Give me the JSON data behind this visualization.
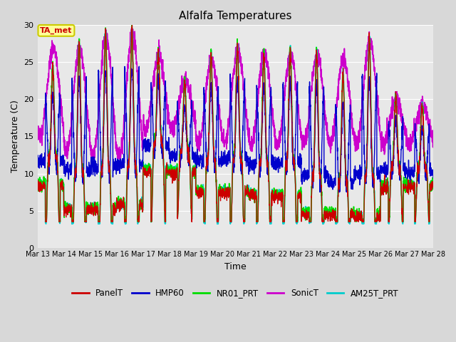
{
  "title": "Alfalfa Temperatures",
  "xlabel": "Time",
  "ylabel": "Temperature (C)",
  "ylim": [
    0,
    30
  ],
  "annotation_text": "TA_met",
  "annotation_color": "#cc0000",
  "annotation_bg": "#ffff99",
  "annotation_border": "#cccc00",
  "fig_bg": "#d8d8d8",
  "plot_bg": "#e8e8e8",
  "grid_color": "#ffffff",
  "series": {
    "PanelT": {
      "color": "#cc0000",
      "lw": 0.9,
      "zorder": 5
    },
    "HMP60": {
      "color": "#0000cc",
      "lw": 1.0,
      "zorder": 4
    },
    "NR01_PRT": {
      "color": "#00dd00",
      "lw": 1.2,
      "zorder": 3
    },
    "SonicT": {
      "color": "#cc00cc",
      "lw": 1.2,
      "zorder": 2
    },
    "AM25T_PRT": {
      "color": "#00cccc",
      "lw": 1.2,
      "zorder": 3
    }
  },
  "n_points": 2880,
  "figsize": [
    6.4,
    4.8
  ],
  "dpi": 100
}
